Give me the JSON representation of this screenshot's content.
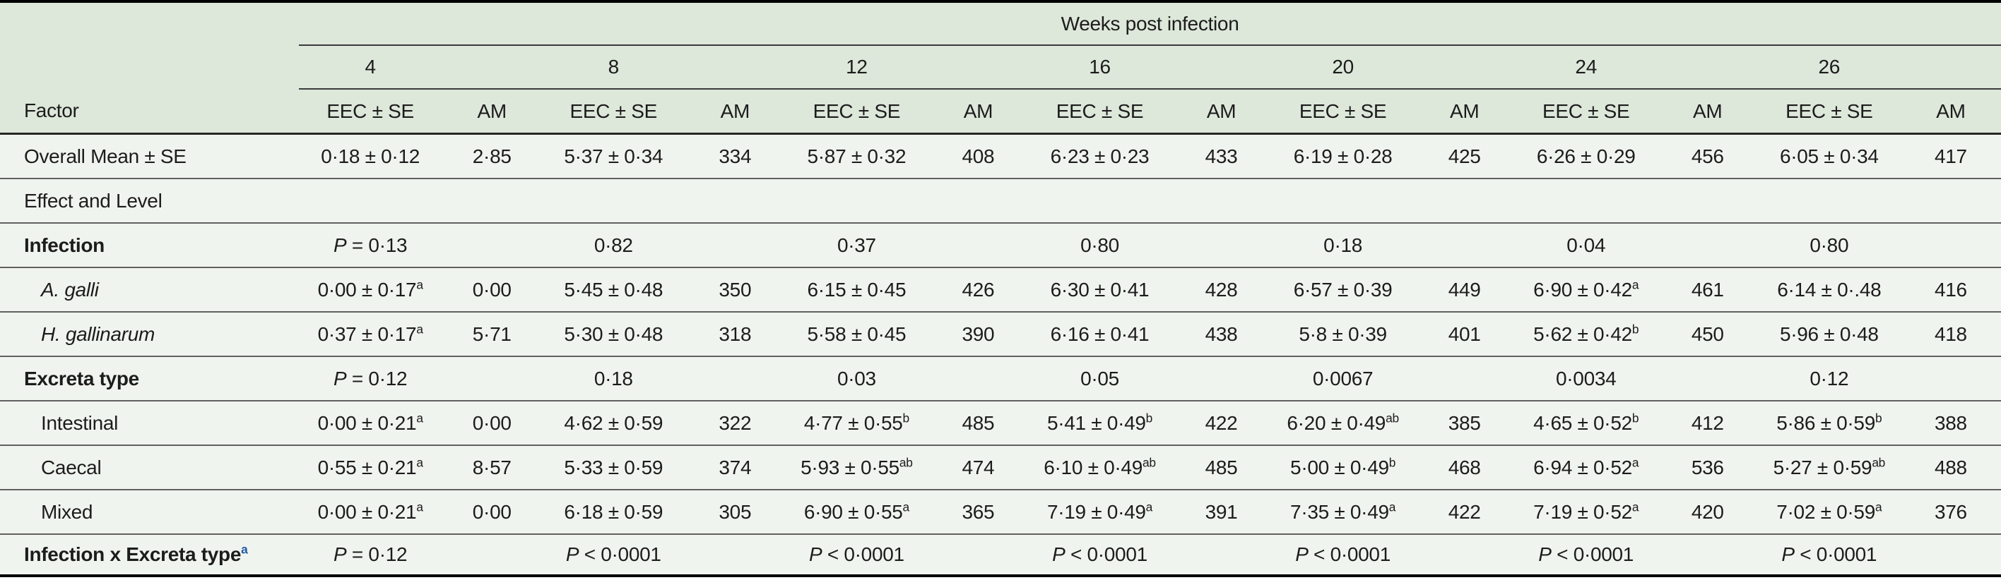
{
  "table": {
    "header": {
      "weeks_title": "Weeks post infection",
      "factor_label": "Factor",
      "weeks": [
        "4",
        "8",
        "12",
        "16",
        "20",
        "24",
        "26"
      ],
      "eec_label": "EEC ± SE",
      "am_label": "AM"
    },
    "rows": [
      {
        "label": "Overall Mean ± SE",
        "cells": [
          "0·18 ± 0·12",
          "2·85",
          "5·37 ± 0·34",
          "334",
          "5·87 ± 0·32",
          "408",
          "6·23 ± 0·23",
          "433",
          "6·19 ± 0·28",
          "425",
          "6·26 ± 0·29",
          "456",
          "6·05 ± 0·34",
          "417"
        ]
      },
      {
        "label": "Effect and Level",
        "cells": [
          "",
          "",
          "",
          "",
          "",
          "",
          "",
          "",
          "",
          "",
          "",
          "",
          "",
          ""
        ]
      },
      {
        "label": "Infection",
        "cells": [
          "P = 0·13",
          "",
          "0·82",
          "",
          "0·37",
          "",
          "0·80",
          "",
          "0·18",
          "",
          "0·04",
          "",
          "0·80",
          ""
        ]
      },
      {
        "label": "A. galli",
        "cells": [
          "0·00 ± 0·17^a",
          "0·00",
          "5·45 ± 0·48",
          "350",
          "6·15 ± 0·45",
          "426",
          "6·30 ± 0·41",
          "428",
          "6·57 ± 0·39",
          "449",
          "6·90 ± 0·42^a",
          "461",
          "6·14 ± 0·.48",
          "416"
        ]
      },
      {
        "label": "H. gallinarum",
        "cells": [
          "0·37 ± 0·17^a",
          "5·71",
          "5·30 ± 0·48",
          "318",
          "5·58 ± 0·45",
          "390",
          "6·16 ± 0·41",
          "438",
          "5·8 ± 0·39",
          "401",
          "5·62 ± 0·42^b",
          "450",
          "5·96 ± 0·48",
          "418"
        ]
      },
      {
        "label": "Excreta type",
        "cells": [
          "P = 0·12",
          "",
          "0·18",
          "",
          "0·03",
          "",
          "0·05",
          "",
          "0·0067",
          "",
          "0·0034",
          "",
          "0·12",
          ""
        ]
      },
      {
        "label": "Intestinal",
        "cells": [
          "0·00 ± 0·21^a",
          "0·00",
          "4·62 ± 0·59",
          "322",
          "4·77 ± 0·55^b",
          "485",
          "5·41 ± 0·49^b",
          "422",
          "6·20 ± 0·49^ab",
          "385",
          "4·65 ± 0·52^b",
          "412",
          "5·86 ± 0·59^b",
          "388"
        ]
      },
      {
        "label": "Caecal",
        "cells": [
          "0·55 ± 0·21^a",
          "8·57",
          "5·33 ± 0·59",
          "374",
          "5·93 ± 0·55^ab",
          "474",
          "6·10 ± 0·49^ab",
          "485",
          "5·00 ± 0·49^b",
          "468",
          "6·94 ± 0·52^a",
          "536",
          "5·27 ± 0·59^ab",
          "488"
        ]
      },
      {
        "label": "Mixed",
        "cells": [
          "0·00 ± 0·21^a",
          "0·00",
          "6·18 ± 0·59",
          "305",
          "6·90 ± 0·55^a",
          "365",
          "7·19 ± 0·49^a",
          "391",
          "7·35 ± 0·49^a",
          "422",
          "7·19 ± 0·52^a",
          "420",
          "7·02 ± 0·59^a",
          "376"
        ]
      },
      {
        "label": "Infection x Excreta type",
        "label_sup": "a",
        "cells": [
          "P = 0·12",
          "",
          "P < 0·0001",
          "",
          "P < 0·0001",
          "",
          "P < 0·0001",
          "",
          "P < 0·0001",
          "",
          "P < 0·0001",
          "",
          "P < 0·0001",
          ""
        ]
      }
    ],
    "colors": {
      "header_bg": "#dde7da",
      "body_bg": "#f0f4ee",
      "footnote_link": "#1f5ba8"
    }
  }
}
